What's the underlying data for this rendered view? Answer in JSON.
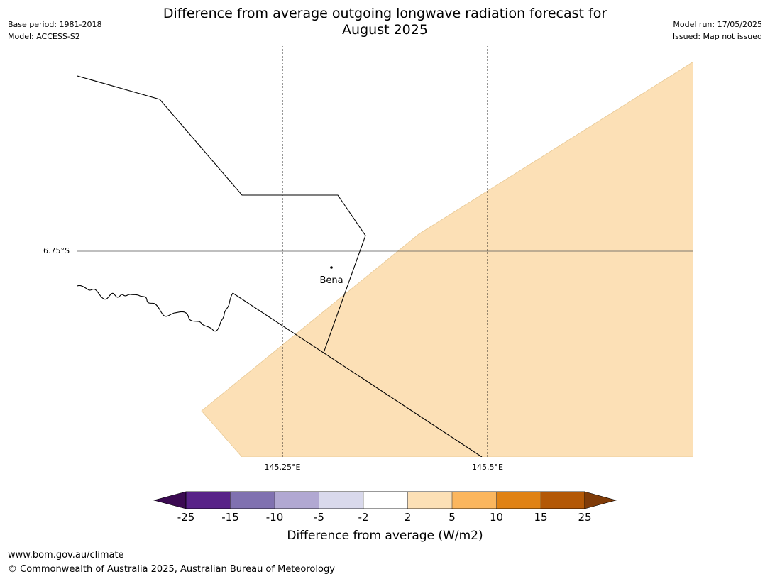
{
  "header": {
    "title_line1": "Difference from average outgoing longwave radiation forecast for",
    "title_line2": "August 2025",
    "base_period": "Base period: 1981-2018",
    "model": "Model: ACCESS-S2",
    "model_run": "Model run: 17/05/2025",
    "issued": "Issued: Map not issued"
  },
  "map": {
    "lat_labels": [
      "6.75°S"
    ],
    "lon_labels": [
      "145.25°E",
      "145.5°E"
    ],
    "places": [
      {
        "name": "Bena"
      }
    ],
    "anomaly_fill_color": "#fce0b6",
    "anomaly_category": "2 to 5"
  },
  "colorbar": {
    "ticks": [
      "-25",
      "-15",
      "-10",
      "-5",
      "-2",
      "2",
      "5",
      "10",
      "15",
      "25"
    ],
    "colors": [
      "#3b0a52",
      "#582288",
      "#8071b0",
      "#b1a8d2",
      "#d9d9ec",
      "#ffffff",
      "#fce0b6",
      "#fbb65e",
      "#e08214",
      "#b35806",
      "#7f3b08"
    ],
    "label": "Difference from average (W/m2)"
  },
  "footer": {
    "url": "www.bom.gov.au/climate",
    "copyright": "© Commonwealth of Australia 2025, Australian Bureau of Meteorology"
  }
}
